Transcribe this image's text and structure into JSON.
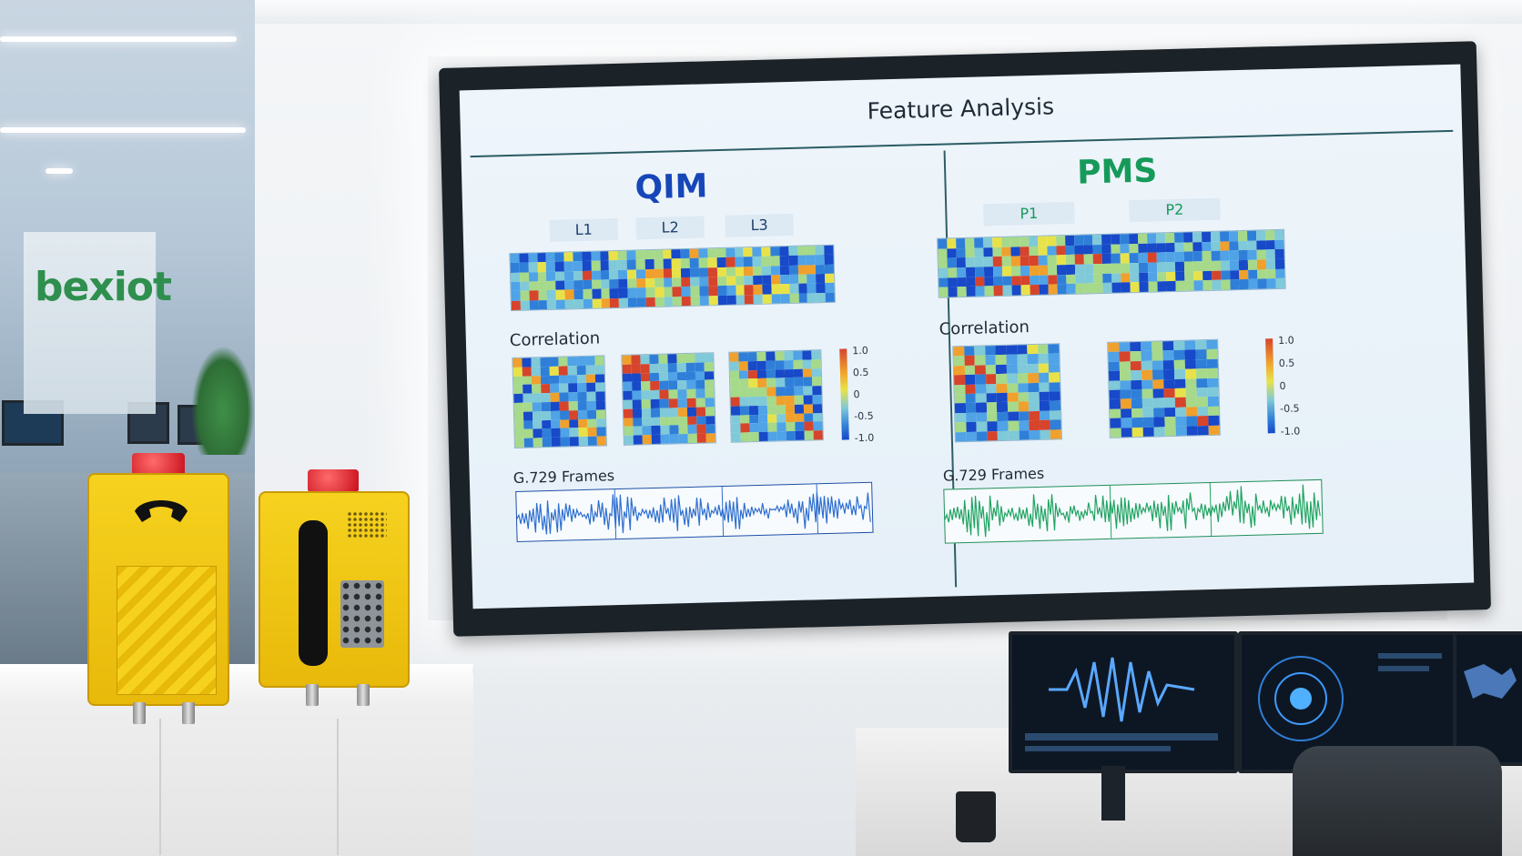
{
  "scene": {
    "brand_logo": "bexiot",
    "colors": {
      "qim_accent": "#1746b8",
      "pms_accent": "#169a5a",
      "phone_yellow": "#f2c814",
      "beacon_red": "#d21c26",
      "screen_bg": "#eaf2f9"
    }
  },
  "display": {
    "title": "Feature Analysis",
    "qim": {
      "heading": "QIM",
      "tabs": [
        "L1",
        "L2",
        "L3"
      ],
      "correlation_label": "Correlation",
      "colorbar_ticks": [
        "1.0",
        "0.5",
        "0",
        "-0.5",
        "-1.0"
      ],
      "frames_label": "G.729 Frames"
    },
    "pms": {
      "heading": "PMS",
      "tabs": [
        "P1",
        "P2"
      ],
      "correlation_label": "Correlation",
      "colorbar_ticks": [
        "1.0",
        "0.5",
        "0",
        "-0.5",
        "-1.0"
      ],
      "frames_label": "G.729 Frames"
    }
  }
}
